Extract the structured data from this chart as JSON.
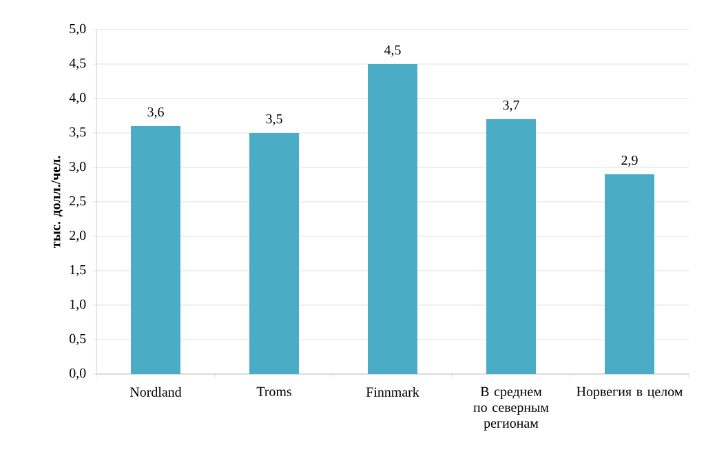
{
  "chart_data": {
    "type": "bar",
    "ylabel": "тыс. долл./чел.",
    "categories": [
      "Nordland",
      "Troms",
      "Finnmark",
      "В среднем по северным регионам",
      "Норвегия в целом"
    ],
    "values": [
      3.6,
      3.5,
      4.5,
      3.7,
      2.9
    ],
    "value_labels": [
      "3,6",
      "3,5",
      "4,5",
      "3,7",
      "2,9"
    ],
    "color": "#4bacc6",
    "ylim": [
      0,
      5
    ],
    "yticks": [
      {
        "value": 0,
        "label": "0,0"
      },
      {
        "value": 0.5,
        "label": "0,5"
      },
      {
        "value": 1,
        "label": "1,0"
      },
      {
        "value": 1.5,
        "label": "1,5"
      },
      {
        "value": 2,
        "label": "2,0"
      },
      {
        "value": 2.5,
        "label": "2,5"
      },
      {
        "value": 3,
        "label": "3,0"
      },
      {
        "value": 3.5,
        "label": "3,5"
      },
      {
        "value": 4,
        "label": "4,0"
      },
      {
        "value": 4.5,
        "label": "4,5"
      },
      {
        "value": 5,
        "label": "5,0"
      }
    ],
    "grid": "y"
  }
}
